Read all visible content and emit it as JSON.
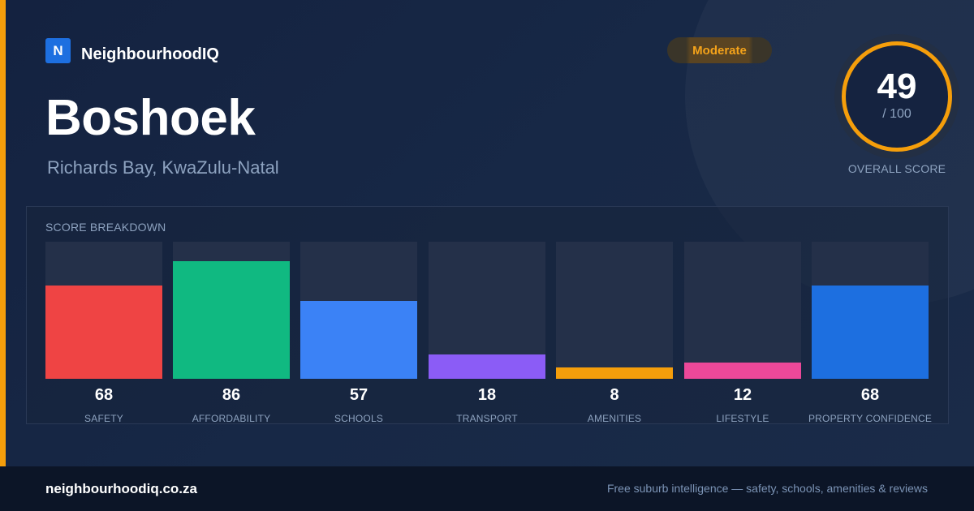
{
  "brand": {
    "logo_letter": "N",
    "name": "NeighbourhoodIQ"
  },
  "suburb": {
    "name": "Boshoek",
    "location": "Richards Bay, KwaZulu-Natal"
  },
  "rating_badge": {
    "label": "Moderate",
    "color": "#f5a31a"
  },
  "overall": {
    "score": "49",
    "max": "/ 100",
    "label": "OVERALL SCORE",
    "ring_color": "#f59e0b",
    "fraction": 0.49
  },
  "breakdown": {
    "title": "SCORE BREAKDOWN",
    "categories": [
      {
        "label": "SAFETY",
        "score": "68",
        "color": "#ef4444"
      },
      {
        "label": "AFFORDABILITY",
        "score": "86",
        "color": "#10b981"
      },
      {
        "label": "SCHOOLS",
        "score": "57",
        "color": "#3b82f6"
      },
      {
        "label": "TRANSPORT",
        "score": "18",
        "color": "#8b5cf6"
      },
      {
        "label": "AMENITIES",
        "score": "8",
        "color": "#f59e0b"
      },
      {
        "label": "LIFESTYLE",
        "score": "12",
        "color": "#ec4899"
      },
      {
        "label": "PROPERTY CONFIDENCE",
        "score": "68",
        "color": "#1d6fe0"
      }
    ]
  },
  "footer": {
    "domain": "neighbourhoodiq.co.za",
    "tagline": "Free suburb intelligence — safety, schools, amenities & reviews"
  },
  "chart_data": {
    "type": "bar",
    "categories": [
      "SAFETY",
      "AFFORDABILITY",
      "SCHOOLS",
      "TRANSPORT",
      "AMENITIES",
      "LIFESTYLE",
      "PROPERTY CONFIDENCE"
    ],
    "values": [
      68,
      86,
      57,
      18,
      8,
      12,
      68
    ],
    "title": "SCORE BREAKDOWN",
    "ylim": [
      0,
      100
    ],
    "grid": false
  }
}
